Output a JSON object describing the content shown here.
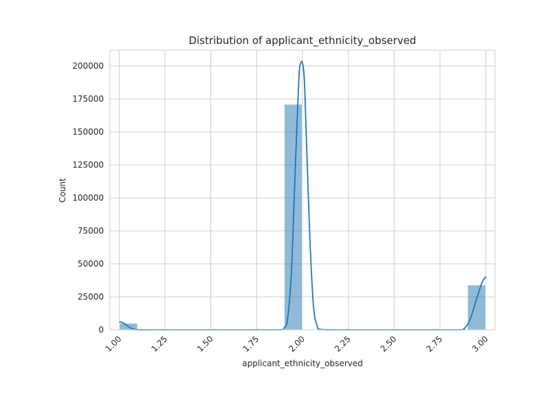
{
  "chart_data": {
    "type": "bar",
    "subtype": "histogram-with-kde",
    "title": "Distribution of applicant_ethnicity_observed",
    "xlabel": "applicant_ethnicity_observed",
    "ylabel": "Count",
    "xlim": [
      0.95,
      3.05
    ],
    "ylim": [
      0,
      212000
    ],
    "x_ticks": [
      1.0,
      1.25,
      1.5,
      1.75,
      2.0,
      2.25,
      2.5,
      2.75,
      3.0
    ],
    "x_tick_labels": [
      "1.00",
      "1.25",
      "1.50",
      "1.75",
      "2.00",
      "2.25",
      "2.50",
      "2.75",
      "3.00"
    ],
    "y_ticks": [
      0,
      25000,
      50000,
      75000,
      100000,
      125000,
      150000,
      175000,
      200000
    ],
    "y_tick_labels": [
      "0",
      "25000",
      "50000",
      "75000",
      "100000",
      "125000",
      "150000",
      "175000",
      "200000"
    ],
    "x_tick_rotation": 45,
    "grid": true,
    "legend": "none",
    "bins": [
      {
        "x0": 1.0,
        "x1": 1.1,
        "count": 5000
      },
      {
        "x0": 1.9,
        "x1": 2.0,
        "count": 171000
      },
      {
        "x0": 2.9,
        "x1": 3.0,
        "count": 34000
      }
    ],
    "kde": {
      "x": [
        1.0,
        1.02,
        1.04,
        1.06,
        1.08,
        1.1,
        1.2,
        1.5,
        1.85,
        1.9,
        1.92,
        1.94,
        1.96,
        1.98,
        1.99,
        2.0,
        2.01,
        2.02,
        2.04,
        2.06,
        2.08,
        2.1,
        2.2,
        2.5,
        2.85,
        2.88,
        2.9,
        2.92,
        2.94,
        2.96,
        2.98,
        3.0
      ],
      "y": [
        6000,
        5400,
        3500,
        1600,
        500,
        100,
        0,
        0,
        0,
        1500,
        10000,
        45000,
        120000,
        190000,
        202000,
        202000,
        190000,
        150000,
        70000,
        18000,
        3000,
        300,
        0,
        0,
        0,
        1000,
        4000,
        10000,
        19000,
        28000,
        36000,
        40500
      ]
    },
    "colors": {
      "bar_fill": "#1f77b4",
      "bar_opacity": 0.5,
      "kde_line": "#1f77b4",
      "grid": "#cccccc",
      "axes_edge": "#cccccc",
      "text": "#262626"
    }
  }
}
